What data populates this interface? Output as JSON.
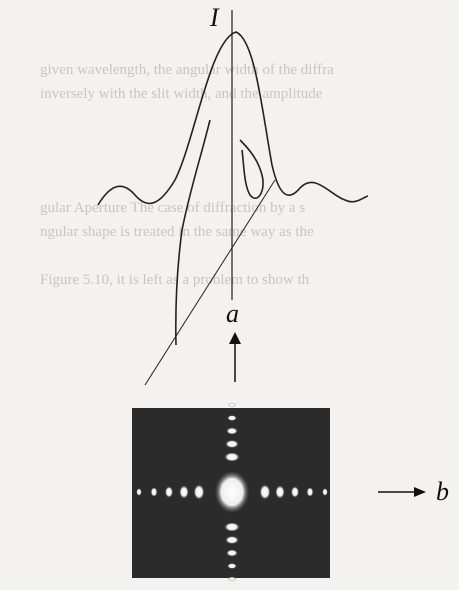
{
  "figure": {
    "intensity_label": "I",
    "axis_a_label": "a",
    "axis_b_label": "b"
  },
  "bleed_through_text": [
    "given wavelength, the angular width of the diffra",
    "inversely with the slit width, and the amplitude",
    "gular Aperture  The case of diffraction by a s",
    "ngular shape is treated in the same way as the",
    "Figure 5.10, it is left as a problem to show th"
  ]
}
